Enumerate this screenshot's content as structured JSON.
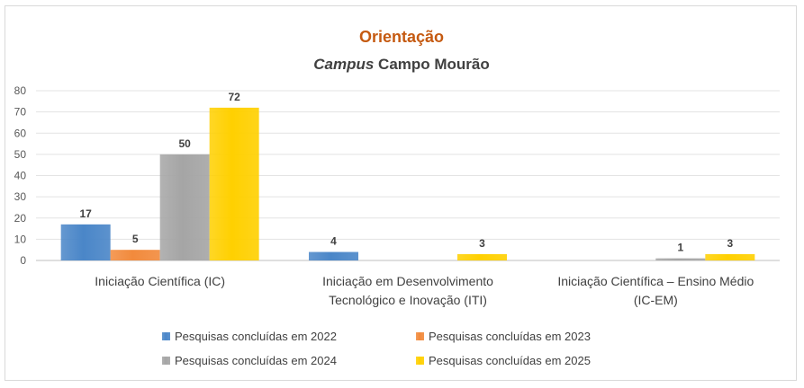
{
  "chart_data": {
    "type": "bar",
    "title": "Orientação",
    "subtitle_italic": "Campus",
    "subtitle_rest": "Campo Mourão",
    "categories": [
      [
        "Iniciação Científica (IC)"
      ],
      [
        "Iniciação em Desenvolvimento",
        "Tecnológico e Inovação (ITI)"
      ],
      [
        "Iniciação Científica – Ensino Médio",
        "(IC-EM)"
      ]
    ],
    "series": [
      {
        "name": "Pesquisas concluídas em 2022",
        "values": [
          17,
          4,
          null
        ],
        "color": "#4a86c8"
      },
      {
        "name": "Pesquisas concluídas em 2023",
        "values": [
          5,
          null,
          null
        ],
        "color": "#f28a3c"
      },
      {
        "name": "Pesquisas concluídas em 2024",
        "values": [
          50,
          null,
          1
        ],
        "color": "#a5a5a5"
      },
      {
        "name": "Pesquisas concluídas em 2025",
        "values": [
          72,
          3,
          3
        ],
        "color": "#ffd000"
      }
    ],
    "ylim": [
      0,
      80
    ],
    "yticks": [
      0,
      10,
      20,
      30,
      40,
      50,
      60,
      70,
      80
    ],
    "grid": true,
    "legend": "bottom",
    "title_color": "#c55a11",
    "subtitle_color": "#404040"
  }
}
